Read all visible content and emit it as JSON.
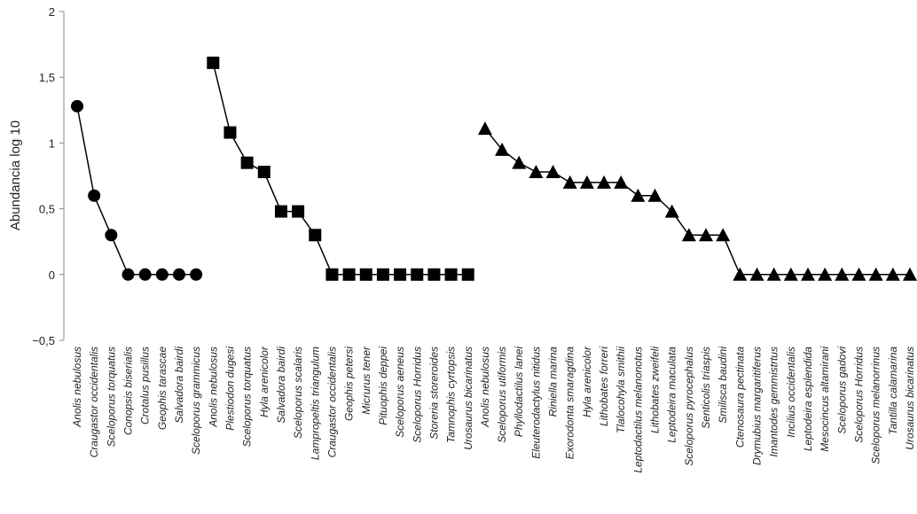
{
  "chart_data": {
    "type": "line",
    "y_label": "Abundancia log 10",
    "categories": [
      "Anolis nebulosus",
      "Craugastor occidentalis",
      "Sceloporus torquatus",
      "Conopsis biserialis",
      "Crotalus pusillus",
      "Geophis tarascae",
      "Salvadora bairdi",
      "Sceloporus grammicus",
      "Anolis nebulosus",
      "Plestiodon dugesi",
      "Sceloporus torquatus",
      "Hyla arenicolor",
      "Salvadora bairdi",
      "Sceloporus scalaris",
      "Lampropeltis triangulum",
      "Craugastor occidentalis",
      "Geophis petersi",
      "Micrurus tener",
      "Pituophis deppei",
      "Sceloporus aeneus",
      "Sceloporus Horridus",
      "Storeria storeroides",
      "Tamnophis cyrtopsis",
      "Urosaurus bicarinatus",
      "Anolis nebulosus",
      "Sceloporus utiformis",
      "Phyllodactilus lanei",
      "Eleuterodactylus nitidus",
      "Riniella marina",
      "Exorodonta smaragdina",
      "Hyla arenicolor",
      "Lithobates forreri",
      "Tlalocohyla smithii",
      "Leptodactilus melanonotus",
      "Lithobates zweifeli",
      "Leptodeira maculata",
      "Sceloporus pyrocephalus",
      "Senticolis triaspis",
      "Smilisca baudini",
      "Ctenosaura pectinata",
      "Drymubius margaritiferus",
      "Imantodes gemmistrtus",
      "Incilius occidentalis",
      "Leptodeira esplendida",
      "Mesocincus altamirani",
      "Sceloporus gadovi",
      "Sceloporus Horridus",
      "Sceloporus melanorrinus",
      "Tantilla calamarina",
      "Urosaurus bicarinatus"
    ],
    "series": [
      {
        "marker": "circle",
        "color": "#000000",
        "values": [
          1.28,
          0.6,
          0.3,
          0,
          0,
          0,
          0,
          0,
          null,
          null,
          null,
          null,
          null,
          null,
          null,
          null,
          null,
          null,
          null,
          null,
          null,
          null,
          null,
          null,
          null,
          null,
          null,
          null,
          null,
          null,
          null,
          null,
          null,
          null,
          null,
          null,
          null,
          null,
          null,
          null,
          null,
          null,
          null,
          null,
          null,
          null,
          null,
          null,
          null,
          null
        ]
      },
      {
        "marker": "square",
        "color": "#000000",
        "values": [
          null,
          null,
          null,
          null,
          null,
          null,
          null,
          null,
          1.61,
          1.08,
          0.85,
          0.78,
          0.48,
          0.48,
          0.3,
          0,
          0,
          0,
          0,
          0,
          0,
          0,
          0,
          0,
          null,
          null,
          null,
          null,
          null,
          null,
          null,
          null,
          null,
          null,
          null,
          null,
          null,
          null,
          null,
          null,
          null,
          null,
          null,
          null,
          null,
          null,
          null,
          null,
          null,
          null
        ]
      },
      {
        "marker": "triangle",
        "color": "#000000",
        "values": [
          null,
          null,
          null,
          null,
          null,
          null,
          null,
          null,
          null,
          null,
          null,
          null,
          null,
          null,
          null,
          null,
          null,
          null,
          null,
          null,
          null,
          null,
          null,
          null,
          1.11,
          0.95,
          0.85,
          0.78,
          0.78,
          0.7,
          0.7,
          0.7,
          0.7,
          0.6,
          0.6,
          0.48,
          0.3,
          0.3,
          0.3,
          0,
          0,
          0,
          0,
          0,
          0,
          0,
          0,
          0,
          0,
          0
        ]
      }
    ],
    "ylim": [
      -0.5,
      2
    ],
    "yticks": [
      {
        "value": -0.5,
        "label": "−0,5"
      },
      0,
      {
        "value": 0.5,
        "label": "0,5"
      },
      1,
      {
        "value": 1.5,
        "label": "1,5"
      },
      2
    ],
    "grid": false
  }
}
